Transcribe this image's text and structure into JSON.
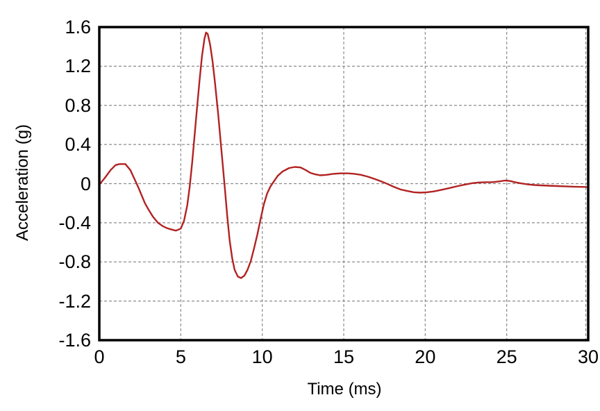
{
  "colors": {
    "line": "#b22222",
    "grid": "#8c8c8c",
    "frame": "#000000",
    "background": "#ffffff",
    "text": "#000000"
  },
  "chart_data": {
    "type": "line",
    "title": "",
    "xlabel": "Time (ms)",
    "ylabel": "Acceleration (g)",
    "xlim": [
      0,
      30
    ],
    "ylim": [
      -1.6,
      1.6
    ],
    "grid": true,
    "grid_style": "dashed",
    "legend_position": "none",
    "x_ticks": [
      {
        "v": 0,
        "label": "0"
      },
      {
        "v": 5,
        "label": "5"
      },
      {
        "v": 10,
        "label": "10"
      },
      {
        "v": 15,
        "label": "15"
      },
      {
        "v": 20,
        "label": "20"
      },
      {
        "v": 25,
        "label": "25"
      },
      {
        "v": 30,
        "label": "30"
      }
    ],
    "y_ticks": [
      {
        "v": 1.6,
        "label": "1.6"
      },
      {
        "v": 1.2,
        "label": "1.2"
      },
      {
        "v": 0.8,
        "label": "0.8"
      },
      {
        "v": 0.4,
        "label": "0.4"
      },
      {
        "v": 0,
        "label": "0"
      },
      {
        "v": -0.4,
        "label": "-0.4"
      },
      {
        "v": -0.8,
        "label": "-0.8"
      },
      {
        "v": -1.2,
        "label": "-1.2"
      },
      {
        "v": -1.6,
        "label": "-1.6"
      }
    ],
    "series": [
      {
        "name": "acceleration",
        "color": "#b22222",
        "points": [
          [
            0,
            -0.01
          ],
          [
            0.3,
            0.05
          ],
          [
            0.7,
            0.14
          ],
          [
            1.0,
            0.19
          ],
          [
            1.25,
            0.2
          ],
          [
            1.6,
            0.2
          ],
          [
            1.9,
            0.14
          ],
          [
            2.15,
            0.05
          ],
          [
            2.4,
            -0.04
          ],
          [
            2.6,
            -0.12
          ],
          [
            2.8,
            -0.2
          ],
          [
            3.0,
            -0.26
          ],
          [
            3.3,
            -0.34
          ],
          [
            3.6,
            -0.4
          ],
          [
            3.9,
            -0.435
          ],
          [
            4.15,
            -0.455
          ],
          [
            4.45,
            -0.47
          ],
          [
            4.7,
            -0.48
          ],
          [
            5.0,
            -0.46
          ],
          [
            5.2,
            -0.38
          ],
          [
            5.4,
            -0.22
          ],
          [
            5.55,
            -0.03
          ],
          [
            5.7,
            0.22
          ],
          [
            5.85,
            0.5
          ],
          [
            6.0,
            0.78
          ],
          [
            6.15,
            1.05
          ],
          [
            6.3,
            1.3
          ],
          [
            6.45,
            1.48
          ],
          [
            6.55,
            1.545
          ],
          [
            6.65,
            1.53
          ],
          [
            6.8,
            1.42
          ],
          [
            6.95,
            1.25
          ],
          [
            7.1,
            1.03
          ],
          [
            7.3,
            0.7
          ],
          [
            7.5,
            0.33
          ],
          [
            7.7,
            -0.04
          ],
          [
            7.85,
            -0.33
          ],
          [
            8.0,
            -0.58
          ],
          [
            8.15,
            -0.76
          ],
          [
            8.3,
            -0.88
          ],
          [
            8.5,
            -0.95
          ],
          [
            8.7,
            -0.965
          ],
          [
            8.9,
            -0.94
          ],
          [
            9.1,
            -0.88
          ],
          [
            9.3,
            -0.79
          ],
          [
            9.5,
            -0.66
          ],
          [
            9.7,
            -0.52
          ],
          [
            9.9,
            -0.36
          ],
          [
            10.1,
            -0.21
          ],
          [
            10.3,
            -0.1
          ],
          [
            10.5,
            -0.03
          ],
          [
            10.7,
            0.02
          ],
          [
            10.95,
            0.08
          ],
          [
            11.25,
            0.125
          ],
          [
            11.65,
            0.16
          ],
          [
            12.0,
            0.17
          ],
          [
            12.35,
            0.165
          ],
          [
            12.65,
            0.14
          ],
          [
            12.95,
            0.11
          ],
          [
            13.25,
            0.095
          ],
          [
            13.55,
            0.085
          ],
          [
            13.95,
            0.09
          ],
          [
            14.35,
            0.1
          ],
          [
            14.8,
            0.105
          ],
          [
            15.25,
            0.105
          ],
          [
            15.65,
            0.1
          ],
          [
            16.05,
            0.09
          ],
          [
            16.5,
            0.07
          ],
          [
            16.95,
            0.045
          ],
          [
            17.35,
            0.02
          ],
          [
            17.7,
            -0.005
          ],
          [
            18.1,
            -0.035
          ],
          [
            18.5,
            -0.06
          ],
          [
            18.9,
            -0.075
          ],
          [
            19.3,
            -0.088
          ],
          [
            19.7,
            -0.092
          ],
          [
            20.1,
            -0.088
          ],
          [
            20.5,
            -0.08
          ],
          [
            21.0,
            -0.063
          ],
          [
            21.5,
            -0.045
          ],
          [
            22.0,
            -0.025
          ],
          [
            22.5,
            -0.008
          ],
          [
            22.9,
            0.005
          ],
          [
            23.3,
            0.012
          ],
          [
            23.7,
            0.015
          ],
          [
            24.1,
            0.015
          ],
          [
            24.5,
            0.022
          ],
          [
            24.9,
            0.032
          ],
          [
            25.2,
            0.027
          ],
          [
            25.5,
            0.015
          ],
          [
            25.9,
            0.002
          ],
          [
            26.3,
            -0.008
          ],
          [
            26.7,
            -0.014
          ],
          [
            27.1,
            -0.018
          ],
          [
            27.6,
            -0.021
          ],
          [
            28.1,
            -0.025
          ],
          [
            28.6,
            -0.028
          ],
          [
            29.1,
            -0.031
          ],
          [
            29.6,
            -0.033
          ],
          [
            30,
            -0.035
          ]
        ]
      }
    ]
  }
}
